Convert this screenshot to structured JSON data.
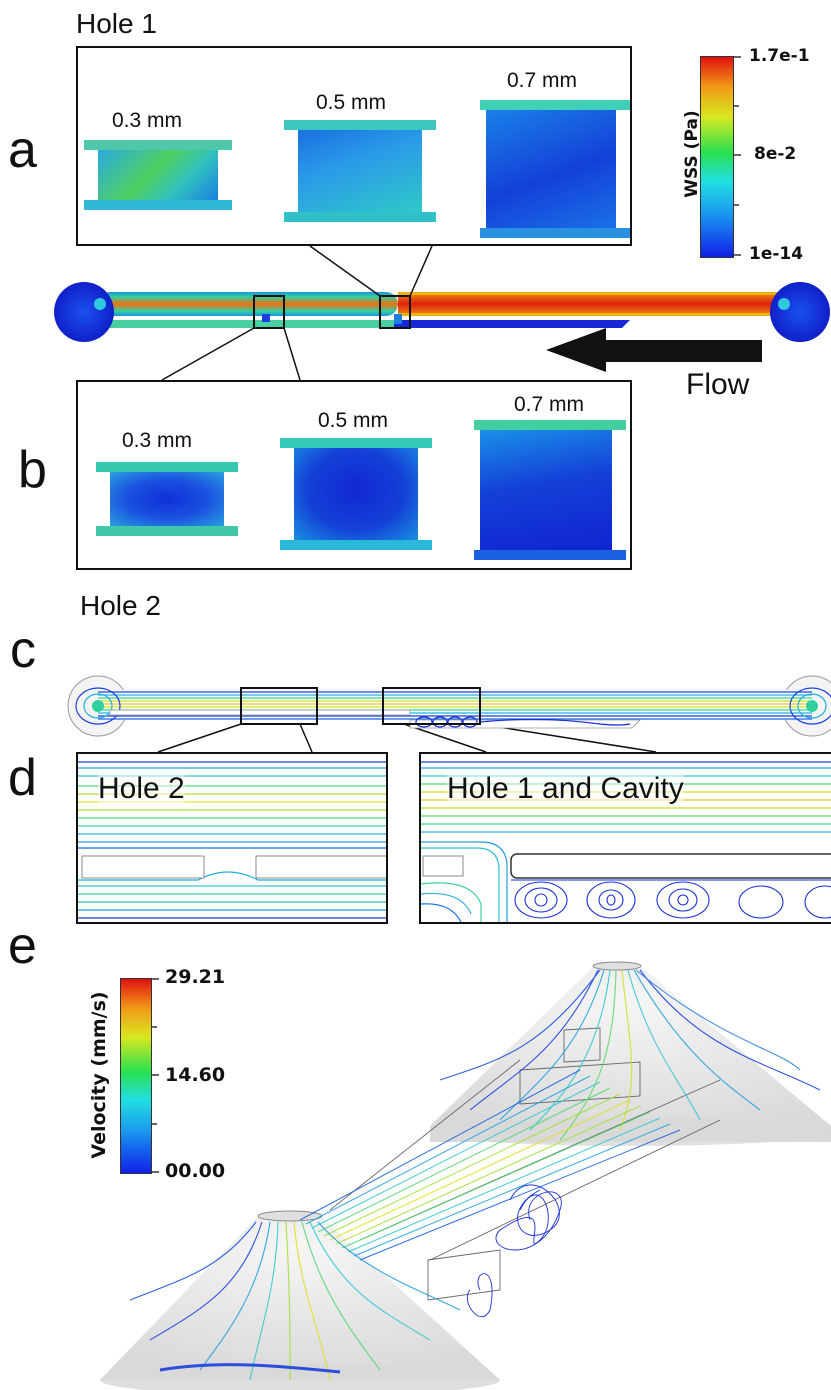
{
  "panels": {
    "a": {
      "letter": "a",
      "hole_label": "Hole 1",
      "sizes": [
        "0.3 mm",
        "0.5 mm",
        "0.7 mm"
      ]
    },
    "b": {
      "letter": "b",
      "hole_label": "Hole 2",
      "sizes": [
        "0.3 mm",
        "0.5 mm",
        "0.7 mm"
      ]
    },
    "c": {
      "letter": "c"
    },
    "d": {
      "letter": "d",
      "left_title": "Hole 2",
      "right_title": "Hole 1 and Cavity"
    },
    "e": {
      "letter": "e"
    }
  },
  "flow_label": "Flow",
  "wss_colorbar": {
    "title": "WSS (Pa)",
    "max": "1.7e-1",
    "mid": "8e-2",
    "min": "1e-14"
  },
  "velocity_colorbar": {
    "title": "Velocity  (mm/s)",
    "max": "29.21",
    "mid": "14.60",
    "min": "00.00"
  },
  "colors": {
    "low": "#1a2fe0",
    "cyan": "#26c6e0",
    "green": "#2ee05a",
    "yellow": "#f2e020",
    "high": "#e01818"
  }
}
